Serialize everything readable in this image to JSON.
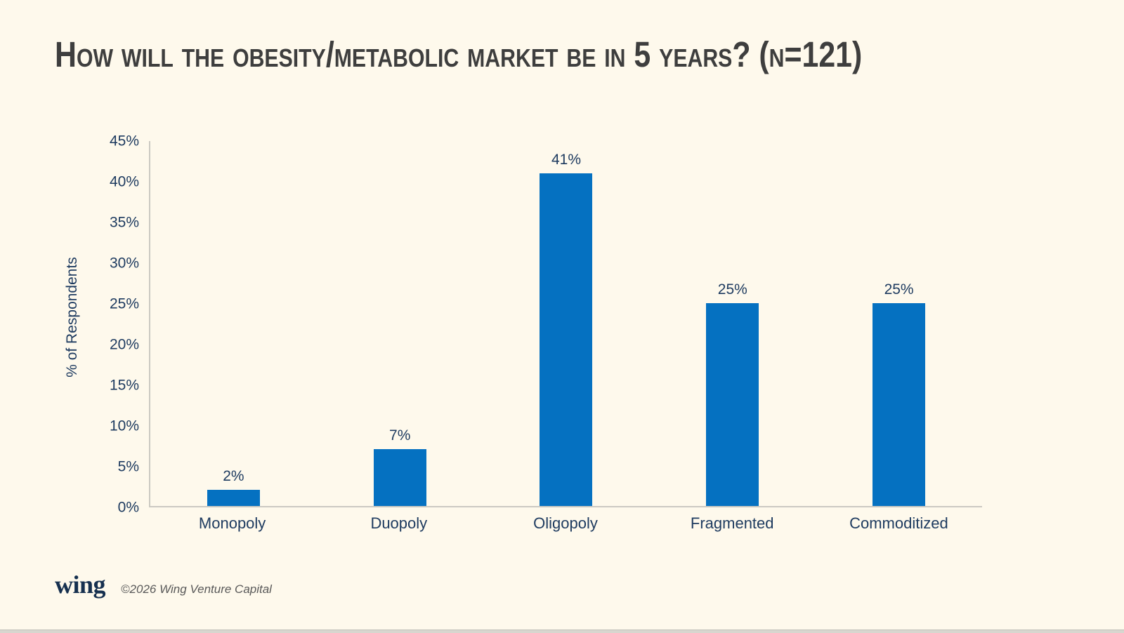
{
  "title": "How will the obesity/metabolic market be in 5 years? (n=121)",
  "footer": {
    "logo_text": "wing",
    "copyright": "©2026 Wing Venture Capital"
  },
  "colors": {
    "background": "#FEF9EC",
    "bar": "#0571C1",
    "axis_text": "#1D3A5F",
    "title_text": "#3E3E3E",
    "axis_line": "#CBC9C2"
  },
  "chart_data": {
    "type": "bar",
    "title": "How will the obesity/metabolic market be in 5 years? (n=121)",
    "categories": [
      "Monopoly",
      "Duopoly",
      "Oligopoly",
      "Fragmented",
      "Commoditized"
    ],
    "values": [
      2,
      7,
      41,
      25,
      25
    ],
    "data_labels": [
      "2%",
      "7%",
      "41%",
      "25%",
      "25%"
    ],
    "xlabel": "",
    "ylabel": "% of Respondents",
    "ylim": [
      0,
      45
    ],
    "yticks": [
      0,
      5,
      10,
      15,
      20,
      25,
      30,
      35,
      40,
      45
    ],
    "ytick_labels": [
      "0%",
      "5%",
      "10%",
      "15%",
      "20%",
      "25%",
      "30%",
      "35%",
      "40%",
      "45%"
    ],
    "grid": false,
    "legend": false,
    "bar_color": "#0571C1",
    "sample_size": 121
  }
}
